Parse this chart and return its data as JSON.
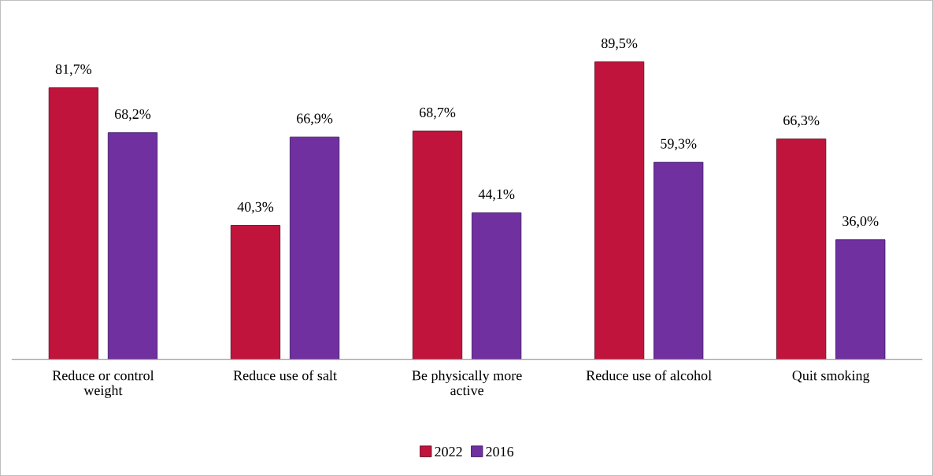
{
  "chart_data": {
    "type": "bar",
    "categories": [
      "Reduce or control\nweight",
      "Reduce use of salt",
      "Be physically more\nactive",
      "Reduce use of alcohol",
      "Quit smoking"
    ],
    "series": [
      {
        "name": "2022",
        "color": "#c0143c",
        "values": [
          81.7,
          40.3,
          68.7,
          89.5,
          66.3
        ],
        "value_labels": [
          "81,7%",
          "40,3%",
          "68,7%",
          "89,5%",
          "66,3%"
        ]
      },
      {
        "name": "2016",
        "color": "#7030a0",
        "values": [
          68.2,
          66.9,
          44.1,
          59.3,
          36.0
        ],
        "value_labels": [
          "68,2%",
          "66,9%",
          "44,1%",
          "59,3%",
          "36,0%"
        ]
      }
    ],
    "legend": "bottom"
  }
}
